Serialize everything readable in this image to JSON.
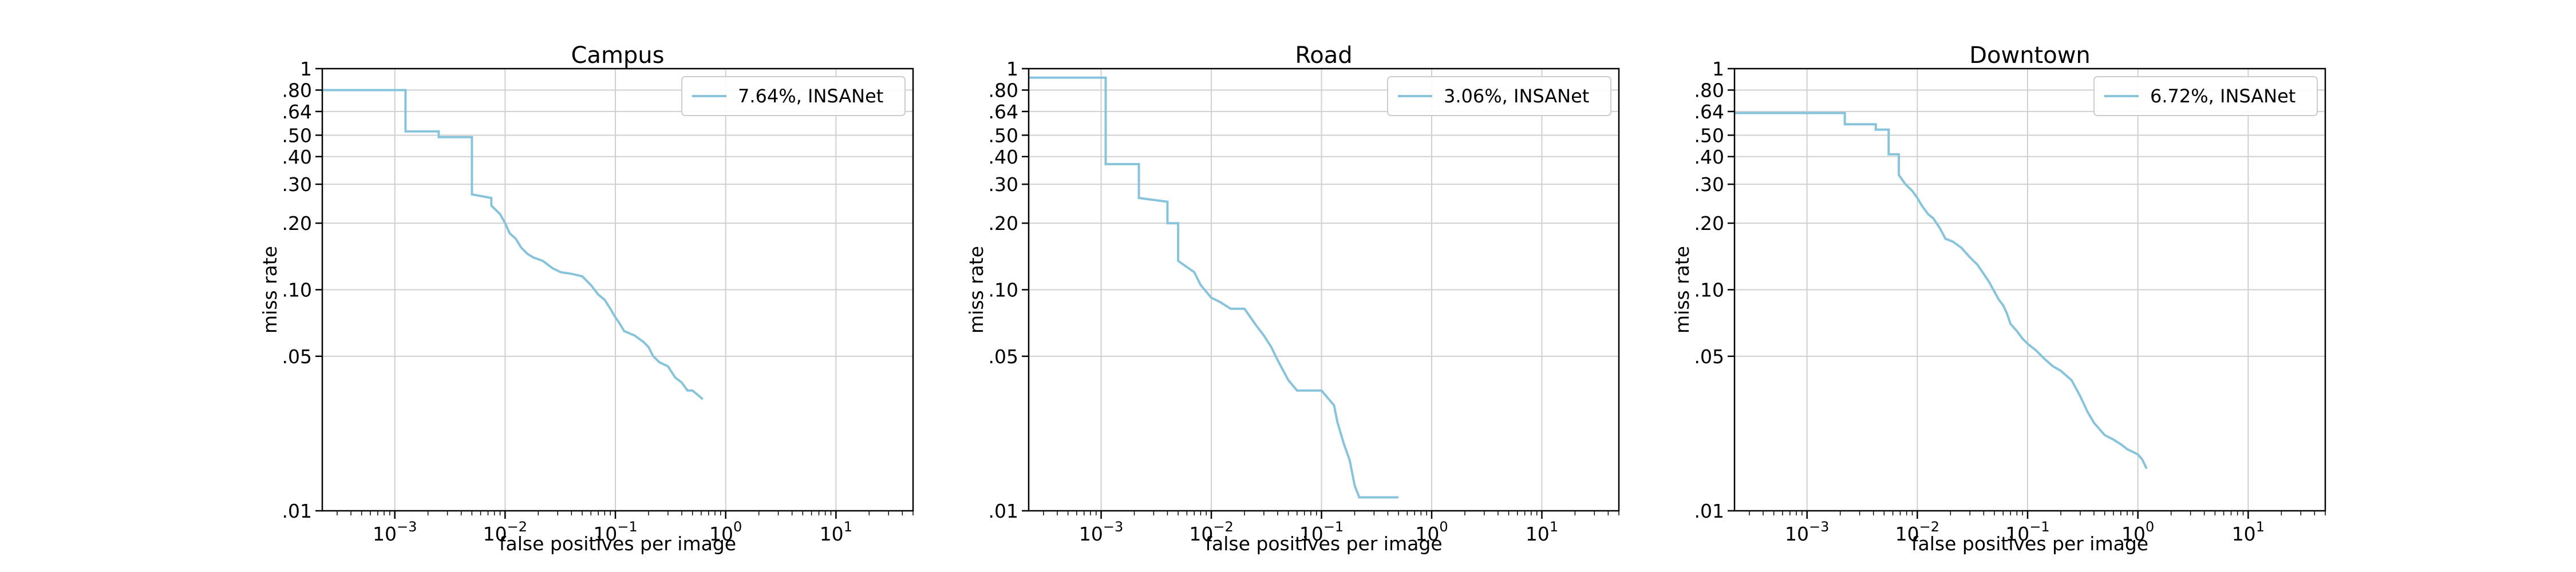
{
  "chart_data": [
    {
      "type": "line",
      "title": "Campus",
      "xlabel": "false positives per image",
      "ylabel": "miss rate",
      "xscale": "log",
      "yscale": "log",
      "xlim": [
        0.00022,
        50
      ],
      "ylim": [
        0.01,
        1
      ],
      "grid": true,
      "legend_placement": "top-right",
      "x_ticks": [
        "10^-3",
        "10^-2",
        "10^-1",
        "10^0",
        "10^1"
      ],
      "y_ticks": [
        "1",
        ".80",
        ".64",
        ".50",
        ".40",
        ".30",
        ".20",
        ".10",
        ".05",
        ".01"
      ],
      "series": [
        {
          "name": "7.64%, INSANet",
          "color": "#87c4dc",
          "x": [
            0.00022,
            0.00125,
            0.00125,
            0.0025,
            0.0025,
            0.005,
            0.005,
            0.0075,
            0.0075,
            0.009,
            0.01,
            0.011,
            0.0125,
            0.014,
            0.016,
            0.018,
            0.022,
            0.027,
            0.032,
            0.04,
            0.05,
            0.06,
            0.07,
            0.08,
            0.09,
            0.1,
            0.11,
            0.12,
            0.15,
            0.18,
            0.2,
            0.22,
            0.25,
            0.3,
            0.35,
            0.4,
            0.45,
            0.5,
            0.62
          ],
          "y": [
            0.8,
            0.8,
            0.52,
            0.52,
            0.49,
            0.49,
            0.27,
            0.26,
            0.24,
            0.22,
            0.2,
            0.18,
            0.17,
            0.155,
            0.145,
            0.14,
            0.135,
            0.125,
            0.12,
            0.118,
            0.115,
            0.105,
            0.095,
            0.09,
            0.082,
            0.075,
            0.07,
            0.065,
            0.062,
            0.058,
            0.055,
            0.05,
            0.047,
            0.045,
            0.04,
            0.038,
            0.035,
            0.035,
            0.032
          ]
        }
      ]
    },
    {
      "type": "line",
      "title": "Road",
      "xlabel": "false positives per image",
      "ylabel": "miss rate",
      "xscale": "log",
      "yscale": "log",
      "xlim": [
        0.00022,
        50
      ],
      "ylim": [
        0.01,
        1
      ],
      "grid": true,
      "legend_placement": "top-right",
      "x_ticks": [
        "10^-3",
        "10^-2",
        "10^-1",
        "10^0",
        "10^1"
      ],
      "y_ticks": [
        "1",
        ".80",
        ".64",
        ".50",
        ".40",
        ".30",
        ".20",
        ".10",
        ".05",
        ".01"
      ],
      "series": [
        {
          "name": "3.06%, INSANet",
          "color": "#87c4dc",
          "x": [
            0.00022,
            0.0011,
            0.0011,
            0.0022,
            0.0022,
            0.004,
            0.004,
            0.005,
            0.005,
            0.007,
            0.008,
            0.009,
            0.01,
            0.012,
            0.015,
            0.02,
            0.025,
            0.03,
            0.035,
            0.04,
            0.045,
            0.05,
            0.06,
            0.08,
            0.1,
            0.13,
            0.14,
            0.16,
            0.18,
            0.2,
            0.22,
            0.3,
            0.5
          ],
          "y": [
            0.91,
            0.91,
            0.37,
            0.37,
            0.26,
            0.25,
            0.2,
            0.2,
            0.135,
            0.12,
            0.105,
            0.098,
            0.092,
            0.088,
            0.082,
            0.082,
            0.07,
            0.062,
            0.055,
            0.048,
            0.043,
            0.039,
            0.035,
            0.035,
            0.035,
            0.03,
            0.025,
            0.02,
            0.017,
            0.013,
            0.0115,
            0.0115,
            0.0115
          ]
        }
      ]
    },
    {
      "type": "line",
      "title": "Downtown",
      "xlabel": "false positives per image",
      "ylabel": "miss rate",
      "xscale": "log",
      "yscale": "log",
      "xlim": [
        0.00022,
        50
      ],
      "ylim": [
        0.01,
        1
      ],
      "grid": true,
      "legend_placement": "top-right",
      "x_ticks": [
        "10^-3",
        "10^-2",
        "10^-1",
        "10^0",
        "10^1"
      ],
      "y_ticks": [
        "1",
        ".80",
        ".64",
        ".50",
        ".40",
        ".30",
        ".20",
        ".10",
        ".05",
        ".01"
      ],
      "series": [
        {
          "name": "6.72%, INSANet",
          "color": "#87c4dc",
          "x": [
            0.00022,
            0.0022,
            0.0022,
            0.0042,
            0.0042,
            0.0055,
            0.0055,
            0.0068,
            0.0068,
            0.0078,
            0.009,
            0.01,
            0.011,
            0.0125,
            0.014,
            0.016,
            0.018,
            0.021,
            0.025,
            0.03,
            0.035,
            0.04,
            0.045,
            0.05,
            0.055,
            0.06,
            0.065,
            0.07,
            0.08,
            0.09,
            0.1,
            0.12,
            0.14,
            0.17,
            0.2,
            0.25,
            0.3,
            0.35,
            0.4,
            0.5,
            0.6,
            0.7,
            0.8,
            1.0,
            1.1,
            1.2
          ],
          "y": [
            0.63,
            0.63,
            0.56,
            0.56,
            0.53,
            0.53,
            0.41,
            0.41,
            0.33,
            0.3,
            0.28,
            0.26,
            0.24,
            0.22,
            0.21,
            0.19,
            0.17,
            0.165,
            0.155,
            0.14,
            0.13,
            0.118,
            0.108,
            0.098,
            0.09,
            0.085,
            0.078,
            0.07,
            0.065,
            0.06,
            0.057,
            0.053,
            0.049,
            0.045,
            0.043,
            0.039,
            0.033,
            0.028,
            0.025,
            0.022,
            0.021,
            0.02,
            0.019,
            0.018,
            0.017,
            0.0155
          ]
        }
      ]
    }
  ]
}
